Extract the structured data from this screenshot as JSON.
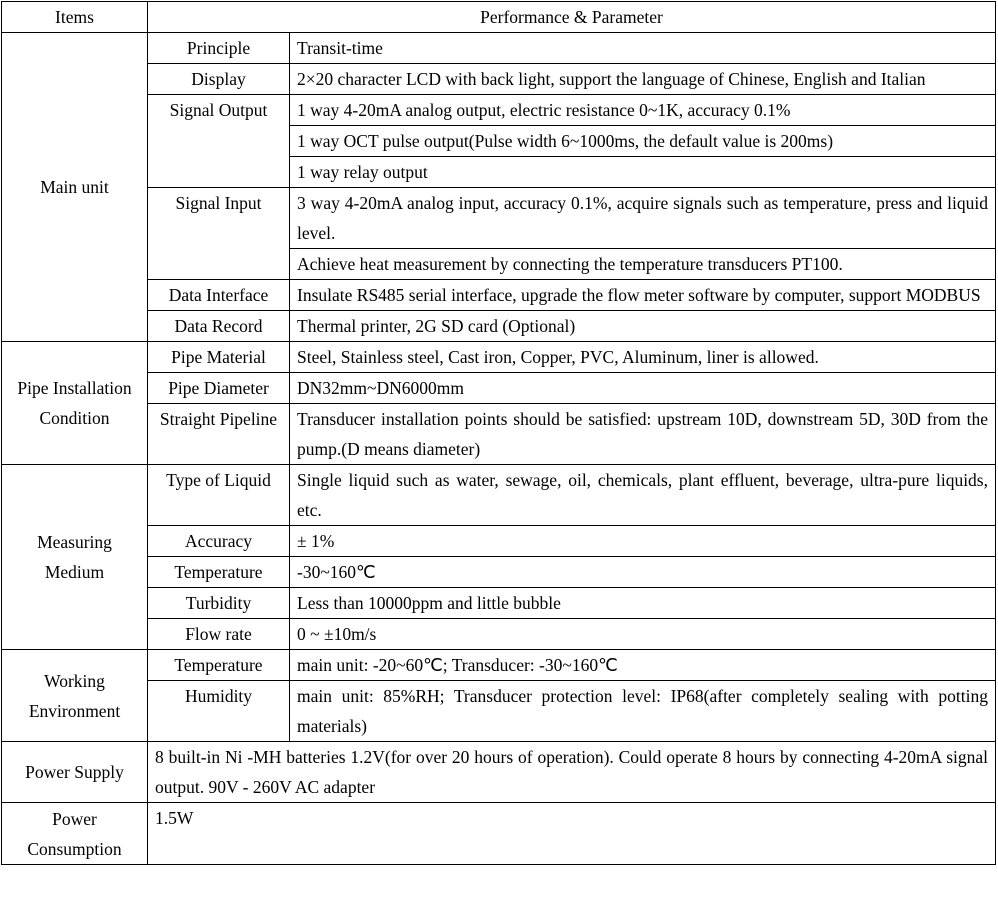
{
  "header": {
    "items": "Items",
    "performance": "Performance & Parameter"
  },
  "sections": [
    {
      "name": "Main unit",
      "rows": [
        {
          "param": "Principle",
          "values": [
            "Transit-time"
          ]
        },
        {
          "param": "Display",
          "values": [
            "2×20 character LCD with back light, support the language of Chinese, English and Italian"
          ]
        },
        {
          "param": "Signal Output",
          "values": [
            "1 way 4-20mA analog output, electric resistance 0~1K, accuracy 0.1%",
            "1 way OCT pulse output(Pulse width 6~1000ms, the default value is 200ms)",
            "1 way relay output"
          ]
        },
        {
          "param": "Signal Input",
          "values": [
            "3 way 4-20mA analog input, accuracy 0.1%, acquire signals such as temperature, press and liquid level.",
            "Achieve heat measurement by connecting the temperature transducers PT100."
          ]
        },
        {
          "param": "Data Interface",
          "values": [
            "Insulate RS485 serial interface, upgrade the flow meter software by computer, support MODBUS"
          ]
        },
        {
          "param": "Data Record",
          "values": [
            "Thermal printer,   2G SD card (Optional)"
          ]
        }
      ]
    },
    {
      "name": "Pipe Installation Condition",
      "rows": [
        {
          "param": "Pipe Material",
          "values": [
            "Steel, Stainless steel, Cast iron, Copper, PVC, Aluminum, liner is allowed."
          ]
        },
        {
          "param": "Pipe Diameter",
          "values": [
            "DN32mm~DN6000mm"
          ]
        },
        {
          "param": "Straight Pipeline",
          "values": [
            "Transducer installation points should be satisfied: upstream 10D, downstream 5D, 30D from the pump.(D means diameter)"
          ]
        }
      ]
    },
    {
      "name": "Measuring Medium",
      "rows": [
        {
          "param": "Type of Liquid",
          "values": [
            "Single liquid such as water, sewage, oil, chemicals, plant effluent, beverage, ultra-pure liquids, etc."
          ]
        },
        {
          "param": "Accuracy",
          "values": [
            "± 1%"
          ]
        },
        {
          "param": "Temperature",
          "values": [
            "-30~160℃"
          ]
        },
        {
          "param": "Turbidity",
          "values": [
            "Less than 10000ppm and little bubble"
          ]
        },
        {
          "param": "Flow rate",
          "values": [
            "0 ~ ±10m/s"
          ]
        }
      ]
    },
    {
      "name": "Working Environment",
      "rows": [
        {
          "param": "Temperature",
          "values": [
            "main unit: -20~60℃; Transducer: -30~160℃"
          ]
        },
        {
          "param": "Humidity",
          "values": [
            "main unit: 85%RH; Transducer protection level: IP68(after completely sealing with potting materials)"
          ]
        }
      ]
    }
  ],
  "footer_rows": [
    {
      "name": "Power Supply",
      "value": "8 built-in Ni -MH batteries 1.2V(for over 20 hours of operation). Could operate 8 hours by connecting 4-20mA signal output. 90V - 260V AC adapter"
    },
    {
      "name": "Power Consumption",
      "value": "1.5W"
    }
  ]
}
